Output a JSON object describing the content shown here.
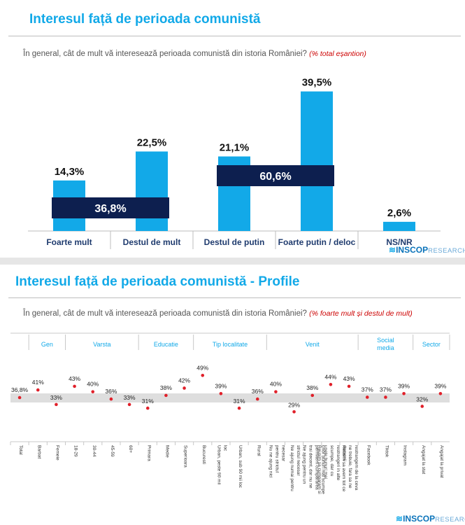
{
  "chart_data": [
    {
      "type": "bar",
      "title": "Interesul față de perioada comunistă",
      "question": "În general, cât de mult vă interesează perioada comunistă din istoria României?",
      "note": "(% total eșantion)",
      "categories": [
        "Foarte mult",
        "Destul de mult",
        "Destul de putin",
        "Foarte putin / deloc",
        "NS/NR"
      ],
      "values": [
        14.3,
        22.5,
        21.1,
        39.5,
        2.6
      ],
      "labels": [
        "14,3%",
        "22,5%",
        "21,1%",
        "39,5%",
        "2,6%"
      ],
      "groups": [
        {
          "label": "36,8%",
          "value": 36.8,
          "from": 0,
          "to": 1
        },
        {
          "label": "60,6%",
          "value": 60.6,
          "from": 2,
          "to": 3
        }
      ],
      "ylim": [
        0,
        42
      ],
      "color": "#12a9e8",
      "group_color": "#0d1f4f"
    },
    {
      "type": "scatter",
      "title": "Interesul față de perioada comunistă - Profile",
      "question": "În general, cât de mult vă interesează perioada comunistă din istoria României?",
      "note": "(% foarte mult și destul de mult)",
      "total": {
        "value": 36.8,
        "label": "36,8%"
      },
      "sections": [
        "Gen",
        "Varsta",
        "Educatie",
        "Tip localitate",
        "Venit",
        "Social media",
        "Sector"
      ],
      "categories": [
        "Total",
        "Barbat",
        "Femeie",
        "18-29",
        "30-44",
        "45-59",
        "60+",
        "Primara",
        "Medie",
        "Superioara",
        "Bucuresti",
        "Urban, peste 90 mii loc",
        "Urban, sub 90 mii loc",
        "Rural",
        "Nu ne ajung nici pentru strictul necesar",
        "Ne ajung numai pentru strictul necesar",
        "Ne ajung pentru un trai decent, dar nu ne permitem cumpararea unor bunuri mai scumpe",
        "Reusim sa cumparam si unele bunuri mai scumpe, dar cu restrangeri in alte domenii",
        "Reusim sa avem tot ce ne trebuie, fara sa ne restrangem de la ceva",
        "Facebook",
        "Tiktok",
        "Instagram",
        "Angajat la stat",
        "Angajat la privat"
      ],
      "values": [
        36.8,
        41,
        33,
        43,
        40,
        36,
        33,
        31,
        38,
        42,
        49,
        39,
        31,
        36,
        40,
        29,
        38,
        44,
        43,
        37,
        37,
        39,
        32,
        39
      ],
      "labels": [
        "36,8%",
        "41%",
        "33%",
        "43%",
        "40%",
        "36%",
        "33%",
        "31%",
        "38%",
        "42%",
        "49%",
        "39%",
        "31%",
        "36%",
        "40%",
        "29%",
        "38%",
        "44%",
        "43%",
        "37%",
        "37%",
        "39%",
        "32%",
        "39%"
      ],
      "ylim": [
        20,
        55
      ],
      "marker_color": "#e0202a"
    }
  ],
  "brand": {
    "name": "INSCOP",
    "suffix": "RESEARCH",
    "mark": "≋"
  }
}
